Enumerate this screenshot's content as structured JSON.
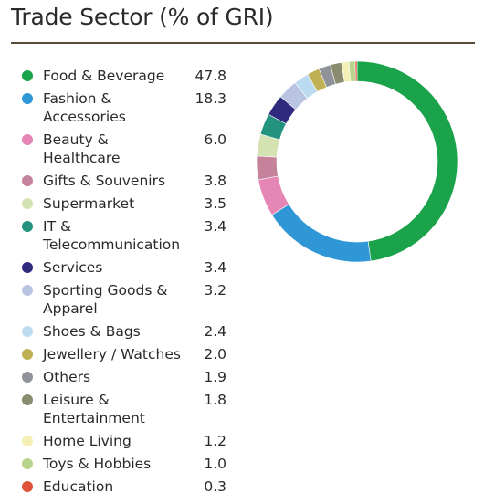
{
  "chart_data": {
    "type": "pie",
    "donut": true,
    "title": "Trade Sector (% of GRI)",
    "legend_position": "left",
    "slices": [
      {
        "label": "Food & Beverage",
        "value": 47.8,
        "color": "#1aa34a"
      },
      {
        "label": "Fashion & Accessories",
        "value": 18.3,
        "color": "#2f97d6"
      },
      {
        "label": "Beauty & Healthcare",
        "value": 6.0,
        "color": "#e586b4"
      },
      {
        "label": "Gifts & Souvenirs",
        "value": 3.8,
        "color": "#c4829b"
      },
      {
        "label": "Supermarket",
        "value": 3.5,
        "color": "#d5e3b2"
      },
      {
        "label": "IT & Telecommunication",
        "value": 3.4,
        "color": "#23927f"
      },
      {
        "label": "Services",
        "value": 3.4,
        "color": "#2f2a7e"
      },
      {
        "label": "Sporting Goods & Apparel",
        "value": 3.2,
        "color": "#b9c4e2"
      },
      {
        "label": "Shoes & Bags",
        "value": 2.4,
        "color": "#bcdaf0"
      },
      {
        "label": "Jewellery / Watches",
        "value": 2.0,
        "color": "#bfb054"
      },
      {
        "label": "Others",
        "value": 1.9,
        "color": "#909399"
      },
      {
        "label": "Leisure & Entertainment",
        "value": 1.8,
        "color": "#8a8c70"
      },
      {
        "label": "Home Living",
        "value": 1.2,
        "color": "#f3efb5"
      },
      {
        "label": "Toys & Hobbies",
        "value": 1.0,
        "color": "#b9d48b"
      },
      {
        "label": "Education",
        "value": 0.3,
        "color": "#e0533a"
      }
    ]
  }
}
